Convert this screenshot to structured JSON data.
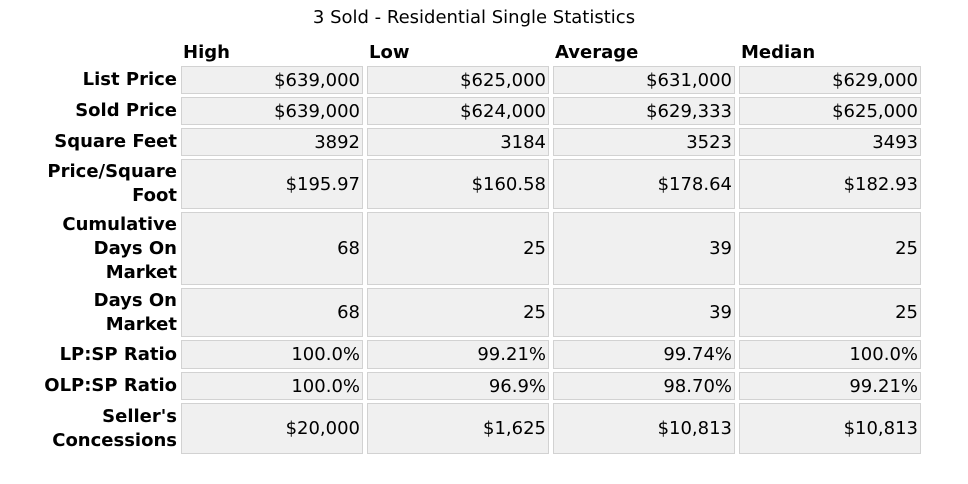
{
  "title": "3 Sold - Residential Single Statistics",
  "columns": [
    "High",
    "Low",
    "Average",
    "Median"
  ],
  "rows": [
    {
      "label": "List Price",
      "values": [
        "$639,000",
        "$625,000",
        "$631,000",
        "$629,000"
      ]
    },
    {
      "label": "Sold Price",
      "values": [
        "$639,000",
        "$624,000",
        "$629,333",
        "$625,000"
      ]
    },
    {
      "label": "Square Feet",
      "values": [
        "3892",
        "3184",
        "3523",
        "3493"
      ]
    },
    {
      "label": "Price/Square Foot",
      "values": [
        "$195.97",
        "$160.58",
        "$178.64",
        "$182.93"
      ]
    },
    {
      "label": "Cumulative Days On Market",
      "values": [
        "68",
        "25",
        "39",
        "25"
      ]
    },
    {
      "label": "Days On Market",
      "values": [
        "68",
        "25",
        "39",
        "25"
      ]
    },
    {
      "label": "LP:SP Ratio",
      "values": [
        "100.0%",
        "99.21%",
        "99.74%",
        "100.0%"
      ]
    },
    {
      "label": "OLP:SP Ratio",
      "values": [
        "100.0%",
        "96.9%",
        "98.70%",
        "99.21%"
      ]
    },
    {
      "label": "Seller's Concessions",
      "values": [
        "$20,000",
        "$1,625",
        "$10,813",
        "$10,813"
      ]
    }
  ]
}
